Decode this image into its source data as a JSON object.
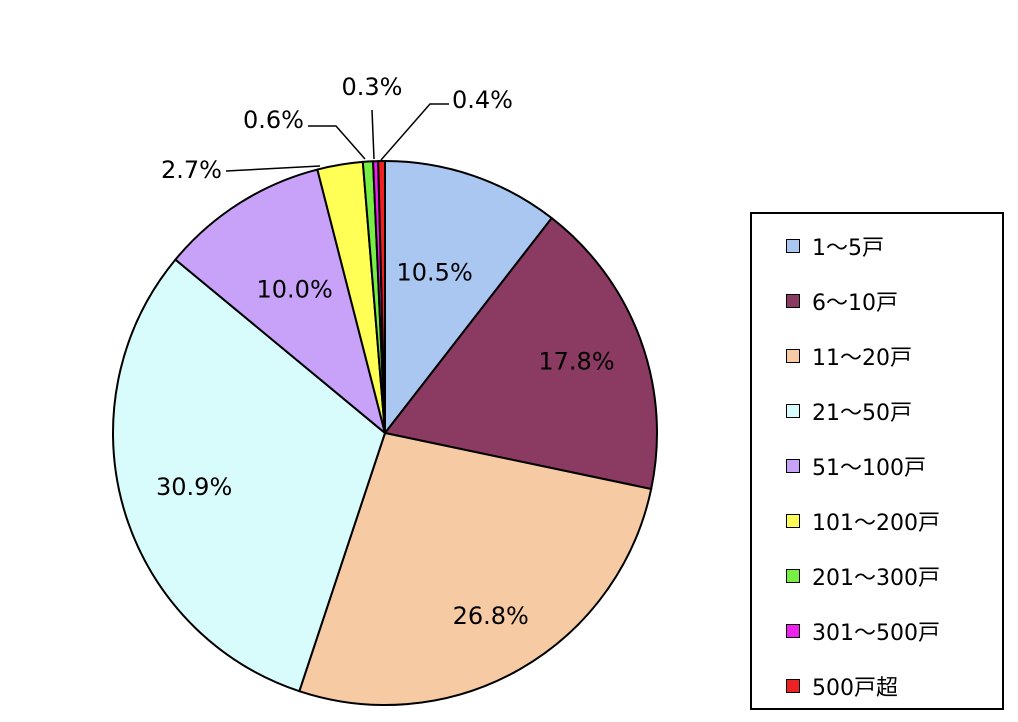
{
  "chart_data": {
    "type": "pie",
    "title": "",
    "start": "top",
    "direction": "clockwise",
    "legend_position": "right",
    "categories": [
      "1～5戸",
      "6～10戸",
      "11～20戸",
      "21～50戸",
      "51～100戸",
      "101～200戸",
      "201～300戸",
      "301～500戸",
      "500戸超"
    ],
    "values": [
      10.5,
      17.8,
      26.8,
      30.9,
      10.0,
      2.7,
      0.6,
      0.3,
      0.4
    ],
    "labels": [
      "10.5%",
      "17.8%",
      "26.8%",
      "30.9%",
      "10.0%",
      "2.7%",
      "0.6%",
      "0.3%",
      "0.4%"
    ],
    "colors": [
      "#a9c7f0",
      "#8b3a62",
      "#f6cba3",
      "#d8fbfb",
      "#c7a2f8",
      "#ffff55",
      "#77ee44",
      "#ee22ee",
      "#ee2222"
    ]
  }
}
